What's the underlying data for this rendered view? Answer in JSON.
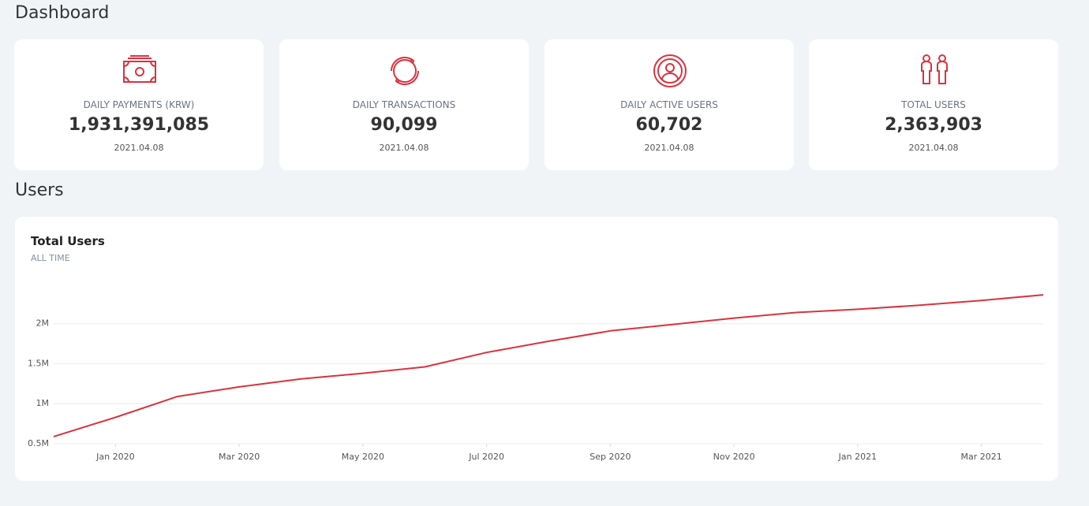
{
  "header": {
    "title": "Dashboard"
  },
  "cards": [
    {
      "label": "DAILY PAYMENTS (KRW)",
      "value": "1,931,391,085",
      "date": "2021.04.08"
    },
    {
      "label": "DAILY TRANSACTIONS",
      "value": "90,099",
      "date": "2021.04.08"
    },
    {
      "label": "DAILY ACTIVE USERS",
      "value": "60,702",
      "date": "2021.04.08"
    },
    {
      "label": "TOTAL USERS",
      "value": "2,363,903",
      "date": "2021.04.08"
    }
  ],
  "section": {
    "title": "Users"
  },
  "chart_data": {
    "type": "line",
    "title": "Total Users",
    "subtitle": "ALL TIME",
    "color": "#d9333f",
    "x": [
      "2019-12",
      "2020-01",
      "2020-02",
      "2020-03",
      "2020-04",
      "2020-05",
      "2020-06",
      "2020-07",
      "2020-08",
      "2020-09",
      "2020-10",
      "2020-11",
      "2020-12",
      "2021-01",
      "2021-02",
      "2021-03",
      "2021-04"
    ],
    "values": [
      590000,
      830000,
      1090000,
      1210000,
      1310000,
      1380000,
      1460000,
      1640000,
      1780000,
      1910000,
      1990000,
      2070000,
      2140000,
      2180000,
      2230000,
      2290000,
      2360000
    ],
    "xlim": [
      "2019-12",
      "2021-04"
    ],
    "xticks": [
      {
        "value": "2020-01",
        "label": "Jan 2020"
      },
      {
        "value": "2020-03",
        "label": "Mar 2020"
      },
      {
        "value": "2020-05",
        "label": "May 2020"
      },
      {
        "value": "2020-07",
        "label": "Jul 2020"
      },
      {
        "value": "2020-09",
        "label": "Sep 2020"
      },
      {
        "value": "2020-11",
        "label": "Nov 2020"
      },
      {
        "value": "2021-01",
        "label": "Jan 2021"
      },
      {
        "value": "2021-03",
        "label": "Mar 2021"
      }
    ],
    "ylim": [
      500000,
      2450000
    ],
    "yticks": [
      {
        "value": 500000,
        "label": "0.5M"
      },
      {
        "value": 1000000,
        "label": "1M"
      },
      {
        "value": 1500000,
        "label": "1.5M"
      },
      {
        "value": 2000000,
        "label": "2M"
      }
    ],
    "grid": true
  }
}
